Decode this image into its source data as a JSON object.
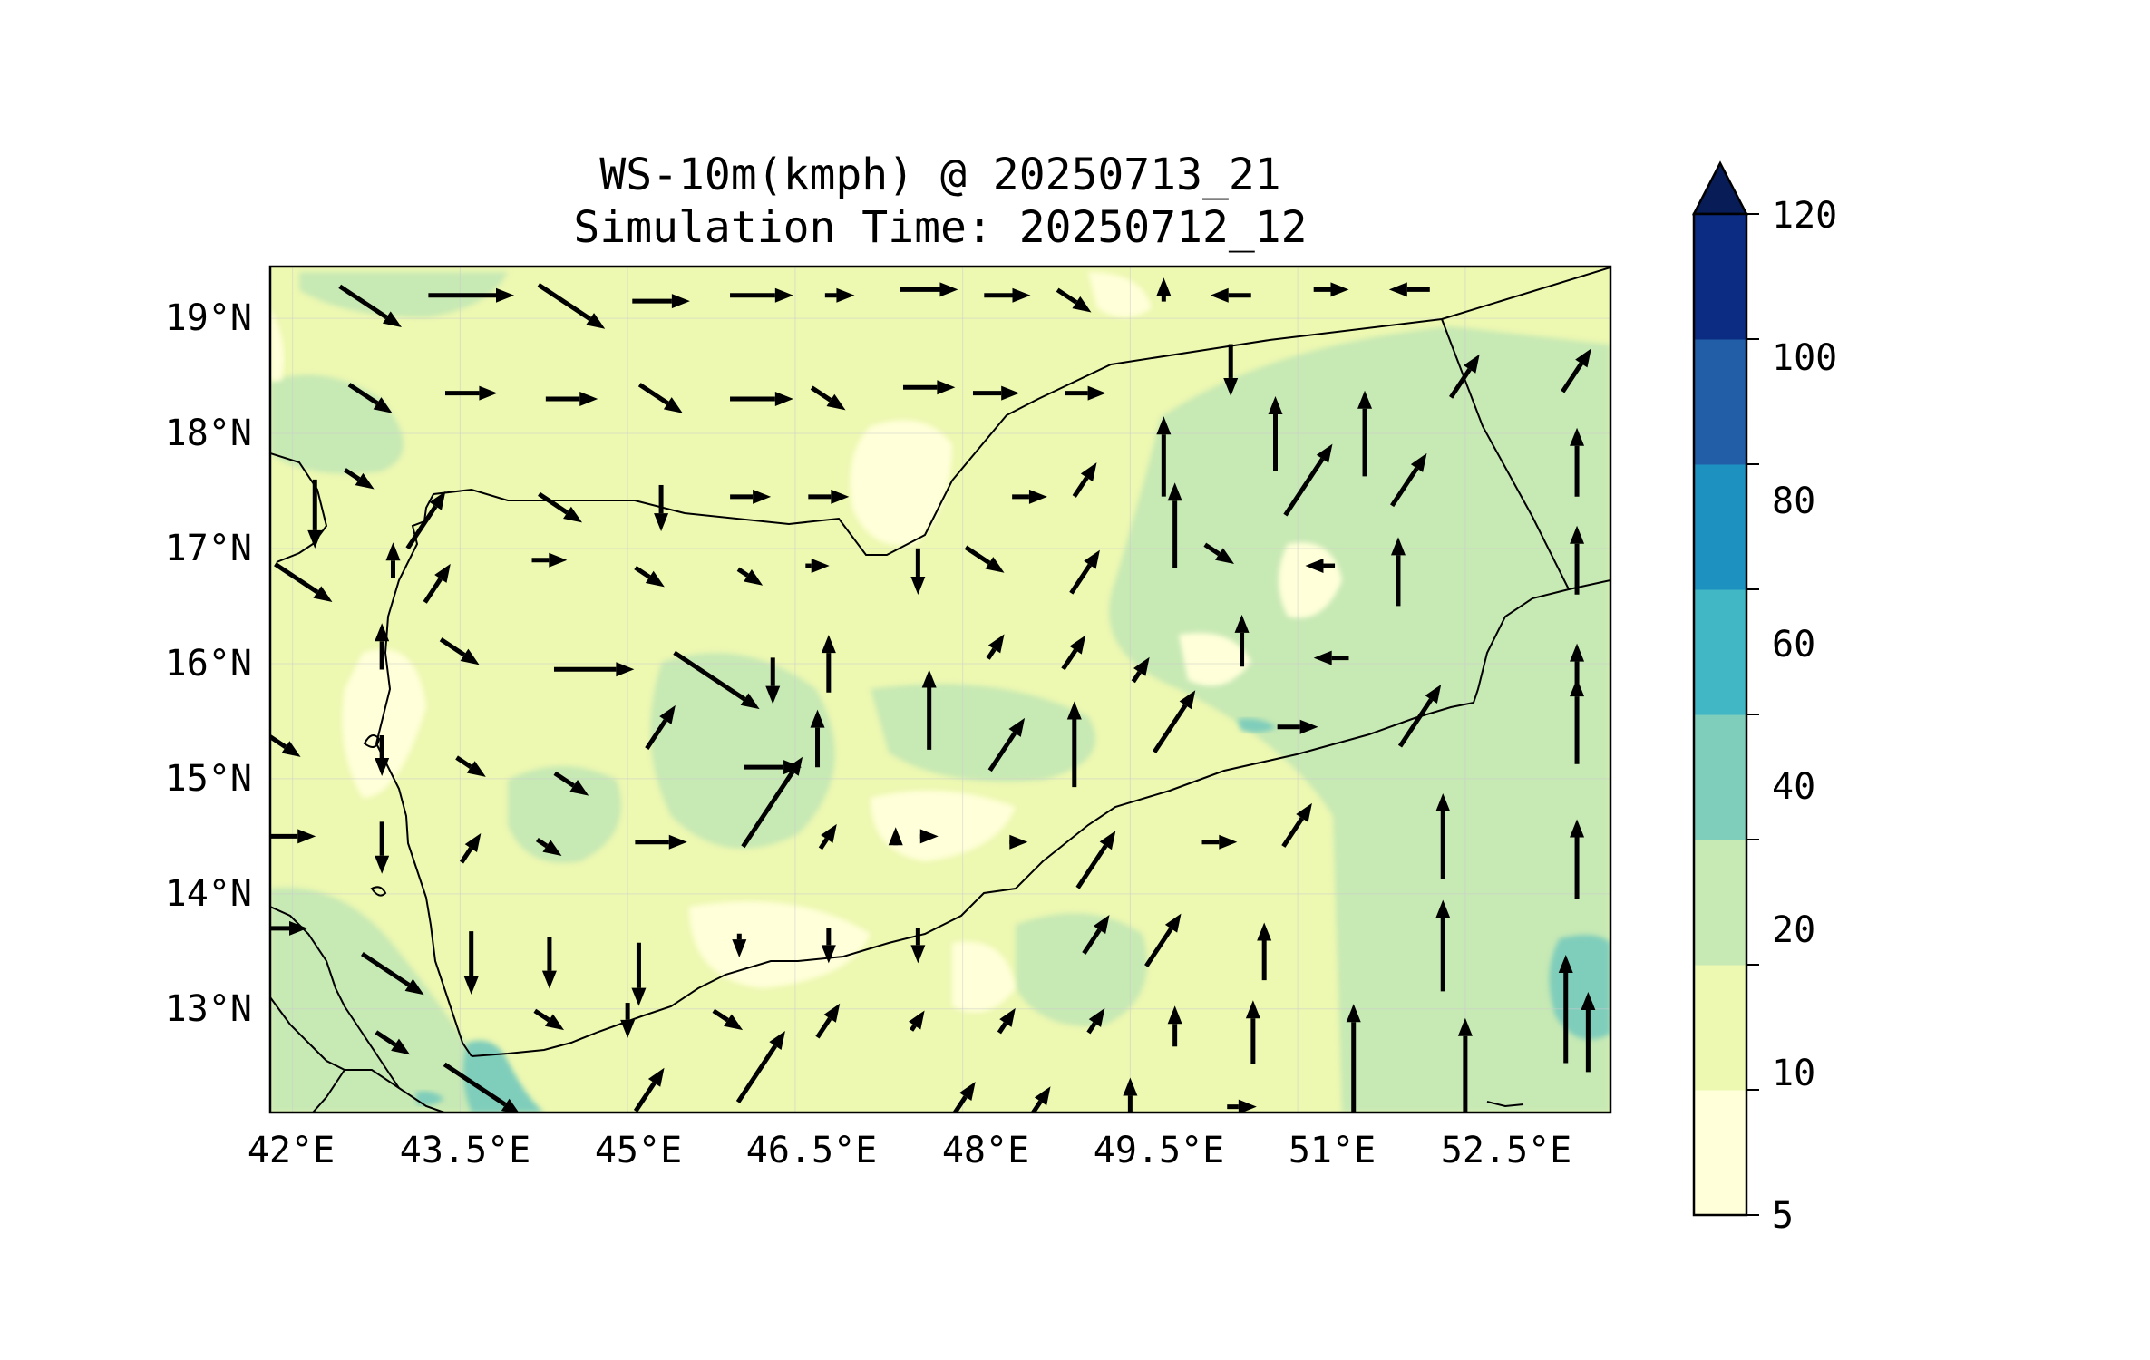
{
  "title": {
    "line1": "WS-10m(kmph) @ 20250713_21",
    "line2": "Simulation Time: 20250712_12"
  },
  "map": {
    "lon_range": [
      41.8,
      53.8
    ],
    "lat_range": [
      12.1,
      19.45
    ],
    "x_ticks": [
      "42°E",
      "43.5°E",
      "45°E",
      "46.5°E",
      "48°E",
      "49.5°E",
      "51°E",
      "52.5°E"
    ],
    "y_ticks": [
      "19°N",
      "18°N",
      "17°N",
      "16°N",
      "15°N",
      "14°N",
      "13°N"
    ],
    "gridlines": true
  },
  "colorbar": {
    "levels": [
      "5",
      "10",
      "20",
      "40",
      "60",
      "80",
      "100",
      "120"
    ],
    "colors": [
      "#ffffd9",
      "#edf8b1",
      "#c7e9b4",
      "#7fcdbb",
      "#41b6c4",
      "#1d91c0",
      "#225ea8",
      "#0c2c84"
    ],
    "extend": "max",
    "extend_color": "#081d58"
  },
  "field_colors": {
    "lt10": "#ffffd9",
    "10_20": "#edf8b1",
    "20_40": "#c7e9b4",
    "40_60": "#7fcdbb"
  },
  "wind_vectors": [
    [
      42.7,
      19.1,
      "SE",
      22
    ],
    [
      43.6,
      19.2,
      "E",
      26
    ],
    [
      44.5,
      19.1,
      "SE",
      24
    ],
    [
      45.3,
      19.15,
      "E",
      16
    ],
    [
      46.2,
      19.2,
      "E",
      18
    ],
    [
      46.9,
      19.2,
      "E",
      6
    ],
    [
      47.7,
      19.25,
      "E",
      16
    ],
    [
      48.4,
      19.2,
      "E",
      12
    ],
    [
      49.0,
      19.15,
      "SE",
      10
    ],
    [
      49.8,
      19.25,
      "N",
      4
    ],
    [
      50.4,
      19.2,
      "W",
      10
    ],
    [
      51.3,
      19.25,
      "E",
      8
    ],
    [
      52.0,
      19.25,
      "W",
      10
    ],
    [
      42.7,
      18.3,
      "SE",
      14
    ],
    [
      43.6,
      18.35,
      "E",
      14
    ],
    [
      44.5,
      18.3,
      "E",
      14
    ],
    [
      45.3,
      18.3,
      "SE",
      14
    ],
    [
      46.2,
      18.3,
      "E",
      18
    ],
    [
      46.8,
      18.3,
      "SE",
      10
    ],
    [
      47.7,
      18.4,
      "E",
      14
    ],
    [
      48.3,
      18.35,
      "E",
      12
    ],
    [
      49.1,
      18.35,
      "E",
      10
    ],
    [
      49.8,
      17.8,
      "N",
      24
    ],
    [
      50.4,
      18.55,
      "S",
      14
    ],
    [
      50.8,
      18.0,
      "N",
      22
    ],
    [
      51.6,
      18.0,
      "N",
      26
    ],
    [
      52.5,
      18.5,
      "NE",
      14
    ],
    [
      53.5,
      18.55,
      "NE",
      14
    ],
    [
      42.6,
      17.6,
      "SE",
      8
    ],
    [
      42.2,
      17.3,
      "S",
      20
    ],
    [
      43.2,
      17.25,
      "NE",
      20
    ],
    [
      44.4,
      17.35,
      "SE",
      14
    ],
    [
      45.3,
      17.35,
      "S",
      12
    ],
    [
      46.1,
      17.45,
      "E",
      10
    ],
    [
      46.8,
      17.45,
      "E",
      10
    ],
    [
      48.6,
      17.45,
      "E",
      8
    ],
    [
      49.1,
      17.6,
      "NE",
      10
    ],
    [
      49.9,
      17.2,
      "N",
      26
    ],
    [
      51.1,
      17.6,
      "NE",
      26
    ],
    [
      52.0,
      17.6,
      "NE",
      18
    ],
    [
      53.5,
      17.75,
      "N",
      20
    ],
    [
      42.1,
      16.7,
      "SE",
      20
    ],
    [
      42.9,
      16.9,
      "N",
      8
    ],
    [
      43.3,
      16.7,
      "NE",
      12
    ],
    [
      44.3,
      16.9,
      "E",
      8
    ],
    [
      45.2,
      16.75,
      "SE",
      8
    ],
    [
      46.1,
      16.75,
      "SE",
      6
    ],
    [
      46.7,
      16.85,
      "E",
      4
    ],
    [
      47.6,
      16.8,
      "S",
      12
    ],
    [
      48.2,
      16.9,
      "SE",
      12
    ],
    [
      49.1,
      16.8,
      "NE",
      14
    ],
    [
      50.3,
      16.95,
      "SE",
      8
    ],
    [
      51.2,
      16.85,
      "W",
      6
    ],
    [
      51.9,
      16.8,
      "N",
      20
    ],
    [
      53.5,
      16.9,
      "N",
      20
    ],
    [
      42.8,
      16.15,
      "N",
      12
    ],
    [
      43.5,
      16.1,
      "SE",
      12
    ],
    [
      44.7,
      15.95,
      "E",
      24
    ],
    [
      45.8,
      15.85,
      "SE",
      32
    ],
    [
      46.3,
      15.85,
      "S",
      12
    ],
    [
      46.8,
      16.0,
      "N",
      16
    ],
    [
      47.7,
      15.6,
      "N",
      24
    ],
    [
      48.3,
      16.15,
      "NE",
      6
    ],
    [
      49.0,
      16.1,
      "NE",
      10
    ],
    [
      49.6,
      15.95,
      "NE",
      6
    ],
    [
      50.5,
      16.2,
      "N",
      14
    ],
    [
      51.3,
      16.05,
      "W",
      8
    ],
    [
      53.5,
      15.95,
      "N",
      14
    ],
    [
      41.9,
      15.3,
      "SE",
      12
    ],
    [
      42.8,
      15.2,
      "S",
      10
    ],
    [
      43.6,
      15.1,
      "SE",
      8
    ],
    [
      44.5,
      14.95,
      "SE",
      10
    ],
    [
      45.3,
      15.45,
      "NE",
      14
    ],
    [
      46.3,
      15.1,
      "E",
      16
    ],
    [
      46.7,
      15.35,
      "N",
      16
    ],
    [
      47.4,
      14.5,
      "N",
      2
    ],
    [
      48.4,
      15.3,
      "NE",
      18
    ],
    [
      49.0,
      15.3,
      "N",
      26
    ],
    [
      49.9,
      15.5,
      "NE",
      22
    ],
    [
      51.0,
      15.45,
      "E",
      10
    ],
    [
      52.1,
      15.55,
      "NE",
      22
    ],
    [
      53.5,
      15.5,
      "N",
      26
    ],
    [
      42.0,
      14.5,
      "E",
      12
    ],
    [
      42.8,
      14.4,
      "S",
      14
    ],
    [
      43.6,
      14.4,
      "NE",
      8
    ],
    [
      44.3,
      14.4,
      "SE",
      6
    ],
    [
      45.3,
      14.45,
      "E",
      14
    ],
    [
      46.3,
      14.8,
      "NE",
      34
    ],
    [
      46.8,
      14.5,
      "NE",
      6
    ],
    [
      47.7,
      14.5,
      "E",
      2
    ],
    [
      48.5,
      14.45,
      "E",
      2
    ],
    [
      49.2,
      14.3,
      "NE",
      20
    ],
    [
      50.3,
      14.45,
      "E",
      8
    ],
    [
      51.0,
      14.6,
      "NE",
      14
    ],
    [
      52.3,
      14.5,
      "N",
      26
    ],
    [
      53.5,
      14.3,
      "N",
      24
    ],
    [
      41.9,
      13.7,
      "E",
      14
    ],
    [
      42.9,
      13.3,
      "SE",
      22
    ],
    [
      43.6,
      13.4,
      "S",
      18
    ],
    [
      44.3,
      13.4,
      "S",
      14
    ],
    [
      45.1,
      13.3,
      "S",
      18
    ],
    [
      46.0,
      13.55,
      "S",
      4
    ],
    [
      46.8,
      13.55,
      "S",
      8
    ],
    [
      47.6,
      13.55,
      "S",
      8
    ],
    [
      49.2,
      13.65,
      "NE",
      12
    ],
    [
      49.8,
      13.6,
      "NE",
      18
    ],
    [
      50.7,
      13.5,
      "N",
      16
    ],
    [
      52.3,
      13.55,
      "N",
      28
    ],
    [
      53.4,
      13.0,
      "N",
      34
    ],
    [
      42.9,
      12.7,
      "SE",
      10
    ],
    [
      43.7,
      12.3,
      "SE",
      28
    ],
    [
      44.3,
      12.9,
      "SE",
      8
    ],
    [
      45.0,
      12.9,
      "S",
      8
    ],
    [
      45.9,
      12.9,
      "SE",
      8
    ],
    [
      46.2,
      12.5,
      "NE",
      26
    ],
    [
      46.8,
      12.9,
      "NE",
      10
    ],
    [
      47.6,
      12.9,
      "NE",
      4
    ],
    [
      48.4,
      12.9,
      "NE",
      6
    ],
    [
      49.2,
      12.9,
      "NE",
      6
    ],
    [
      49.9,
      12.85,
      "N",
      10
    ],
    [
      50.6,
      12.8,
      "N",
      18
    ],
    [
      51.5,
      12.5,
      "N",
      40
    ],
    [
      52.5,
      12.5,
      "N",
      30
    ],
    [
      53.6,
      12.8,
      "N",
      24
    ],
    [
      45.2,
      12.3,
      "NE",
      14
    ],
    [
      48.0,
      12.2,
      "NE",
      12
    ],
    [
      48.7,
      12.2,
      "NE",
      8
    ],
    [
      49.5,
      12.25,
      "N",
      8
    ],
    [
      50.5,
      12.15,
      "E",
      6
    ]
  ]
}
